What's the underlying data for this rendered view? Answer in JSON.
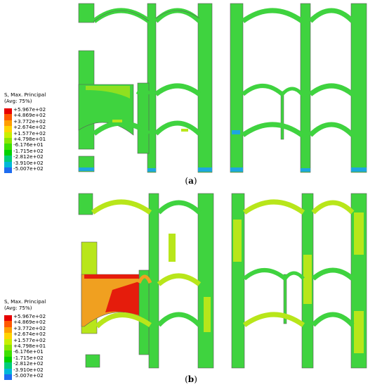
{
  "legend": {
    "title_line1": "S, Max. Principal",
    "title_line2": "(Avg: 75%)",
    "entries": [
      {
        "value": "+5.967e+02",
        "color": "#e60000"
      },
      {
        "value": "+4.869e+02",
        "color": "#ff5900"
      },
      {
        "value": "+3.772e+02",
        "color": "#ff9e00"
      },
      {
        "value": "+2.674e+02",
        "color": "#ffd400"
      },
      {
        "value": "+1.577e+02",
        "color": "#c9ef00"
      },
      {
        "value": "+4.798e+01",
        "color": "#8be600"
      },
      {
        "value": "-6.176e+01",
        "color": "#3ee000"
      },
      {
        "value": "-1.715e+02",
        "color": "#00d200"
      },
      {
        "value": "-2.812e+02",
        "color": "#00cc7a"
      },
      {
        "value": "-3.910e+02",
        "color": "#00b8d8"
      },
      {
        "value": "-5.007e+02",
        "color": "#1e6cf0"
      }
    ]
  },
  "panels": [
    {
      "label_open": "(",
      "label_letter": "a",
      "label_close": ")"
    },
    {
      "label_open": "(",
      "label_letter": "b",
      "label_close": ")"
    }
  ],
  "colors": {
    "green": "#3fd33f",
    "yellow_green": "#b8e61a",
    "orange": "#f0a020",
    "red": "#e51c0c",
    "blue": "#1ea6e0",
    "outline": "#5a5a5a"
  }
}
